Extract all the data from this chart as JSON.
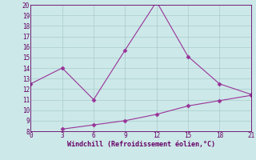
{
  "xlabel": "Windchill (Refroidissement éolien,°C)",
  "x_line1": [
    0,
    3,
    6,
    9,
    12,
    15,
    18,
    21
  ],
  "y_line1": [
    12.5,
    14.0,
    11.0,
    15.7,
    20.3,
    15.1,
    12.5,
    11.5
  ],
  "x_line2": [
    3,
    6,
    9,
    12,
    15,
    18,
    21
  ],
  "y_line2": [
    8.2,
    8.6,
    9.0,
    9.6,
    10.4,
    10.9,
    11.4
  ],
  "line_color": "#993399",
  "bg_color": "#cce8e8",
  "grid_color": "#aacccc",
  "text_color": "#660066",
  "xlim": [
    0,
    21
  ],
  "ylim": [
    8,
    20
  ],
  "xticks": [
    0,
    3,
    6,
    9,
    12,
    15,
    18,
    21
  ],
  "yticks": [
    8,
    9,
    10,
    11,
    12,
    13,
    14,
    15,
    16,
    17,
    18,
    19,
    20
  ]
}
